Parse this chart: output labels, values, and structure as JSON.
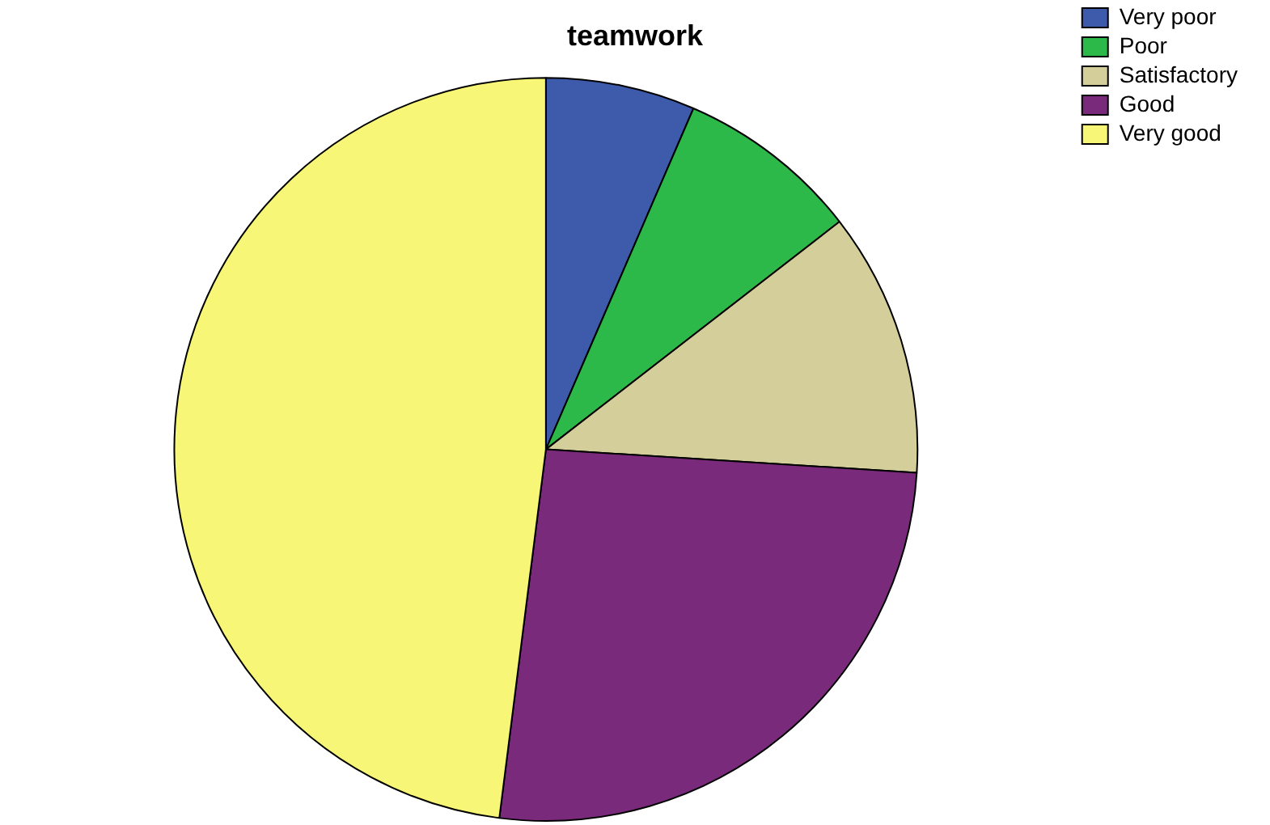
{
  "chart_data": {
    "type": "pie",
    "title": "teamwork",
    "categories": [
      "Very poor",
      "Poor",
      "Satisfactory",
      "Good",
      "Very good"
    ],
    "values": [
      6.5,
      8,
      11.5,
      26,
      48
    ],
    "colors": [
      "#3d5aab",
      "#2db84a",
      "#d4cf9a",
      "#7a2a7a",
      "#f8f676"
    ],
    "legend": "top right"
  }
}
